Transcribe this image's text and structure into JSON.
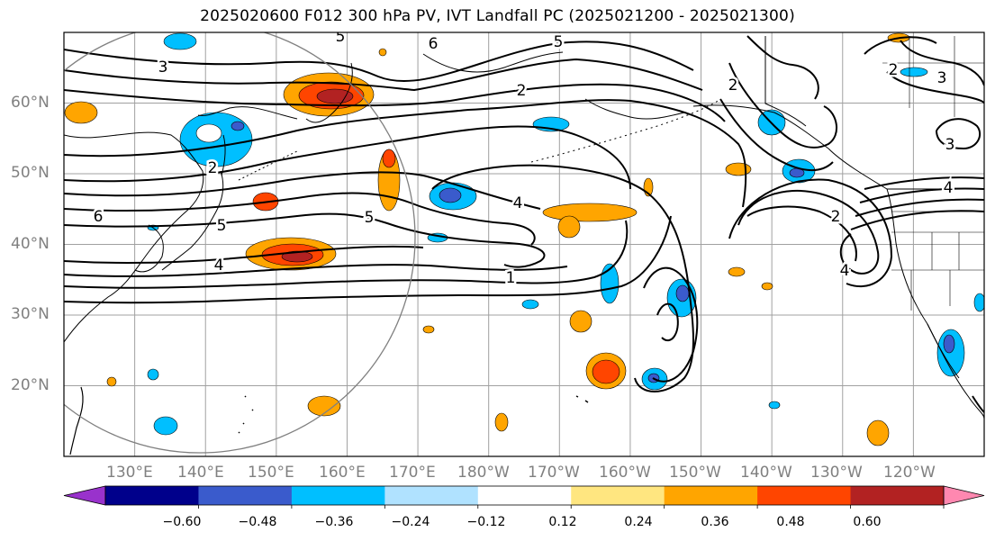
{
  "title": "2025020600 F012 300 hPa PV, IVT Landfall PC (2025021200 - 2025021300)",
  "map": {
    "projection": "PlateCarree",
    "lon_range": [
      120,
      250
    ],
    "lat_range": [
      10,
      70
    ],
    "gridline_color": "#a0a0a0",
    "lat_labels": [
      "60°N",
      "50°N",
      "40°N",
      "30°N",
      "20°N"
    ],
    "lon_labels": [
      "130°E",
      "140°E",
      "150°E",
      "160°E",
      "170°E",
      "180°W",
      "170°W",
      "160°W",
      "150°W",
      "140°W",
      "130°W",
      "120°W"
    ],
    "contour_labels": [
      "3",
      "6",
      "5",
      "5",
      "2",
      "2",
      "3",
      "3",
      "2",
      "6",
      "5",
      "5",
      "4",
      "4",
      "1",
      "4",
      "2",
      "2",
      "4"
    ]
  },
  "colorbar": {
    "ticks": [
      "−0.60",
      "−0.48",
      "−0.36",
      "−0.24",
      "−0.12",
      "0.12",
      "0.24",
      "0.36",
      "0.48",
      "0.60"
    ],
    "colors": [
      "#9932cc",
      "#00008b",
      "#3a5bcc",
      "#00bfff",
      "#b0e2ff",
      "#ffffff",
      "#ffe680",
      "#ffa500",
      "#ff4500",
      "#b22222",
      "#ff88b0"
    ],
    "extend": "both"
  }
}
